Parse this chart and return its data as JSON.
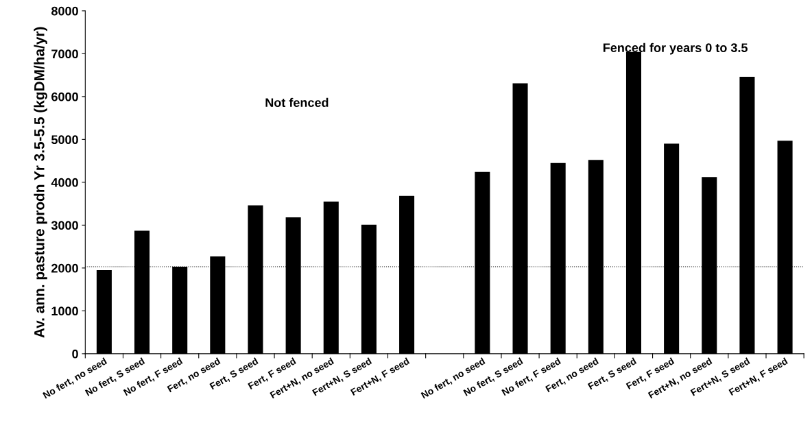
{
  "chart_data": {
    "type": "bar",
    "ylabel": "Av. ann. pasture prodn Yr 3.5-5.5 (kgDM/ha/yr)",
    "categories": [
      "No fert, no seed",
      "No fert, S seed",
      "No fert, F seed",
      "Fert, no seed",
      "Fert, S seed",
      "Fert, F seed",
      "Fert+N, no seed",
      "Fert+N, S seed",
      "Fert+N, F seed",
      null,
      "No fert, no seed",
      "No fert, S seed",
      "No fert, F seed",
      "Fert, no seed",
      "Fert, S seed",
      "Fert, F seed",
      "Fert+N, no seed",
      "Fert+N, S seed",
      "Fert+N, F seed"
    ],
    "values": [
      1950,
      2870,
      2030,
      2270,
      3460,
      3180,
      3550,
      3010,
      3680,
      null,
      4240,
      6310,
      4450,
      4520,
      7040,
      4900,
      4120,
      6460,
      4970
    ],
    "color": "#000000",
    "ylim": [
      0,
      8000
    ],
    "yticks": [
      0,
      1000,
      2000,
      3000,
      4000,
      5000,
      6000,
      7000,
      8000
    ],
    "ref_lines": [
      {
        "axis": "y",
        "value": 2030,
        "color": "#000000",
        "line_style": "dotted"
      }
    ],
    "annotations": [
      "Not fenced",
      "Fenced for years 0 to 3.5"
    ],
    "grid": false,
    "legend": false
  }
}
